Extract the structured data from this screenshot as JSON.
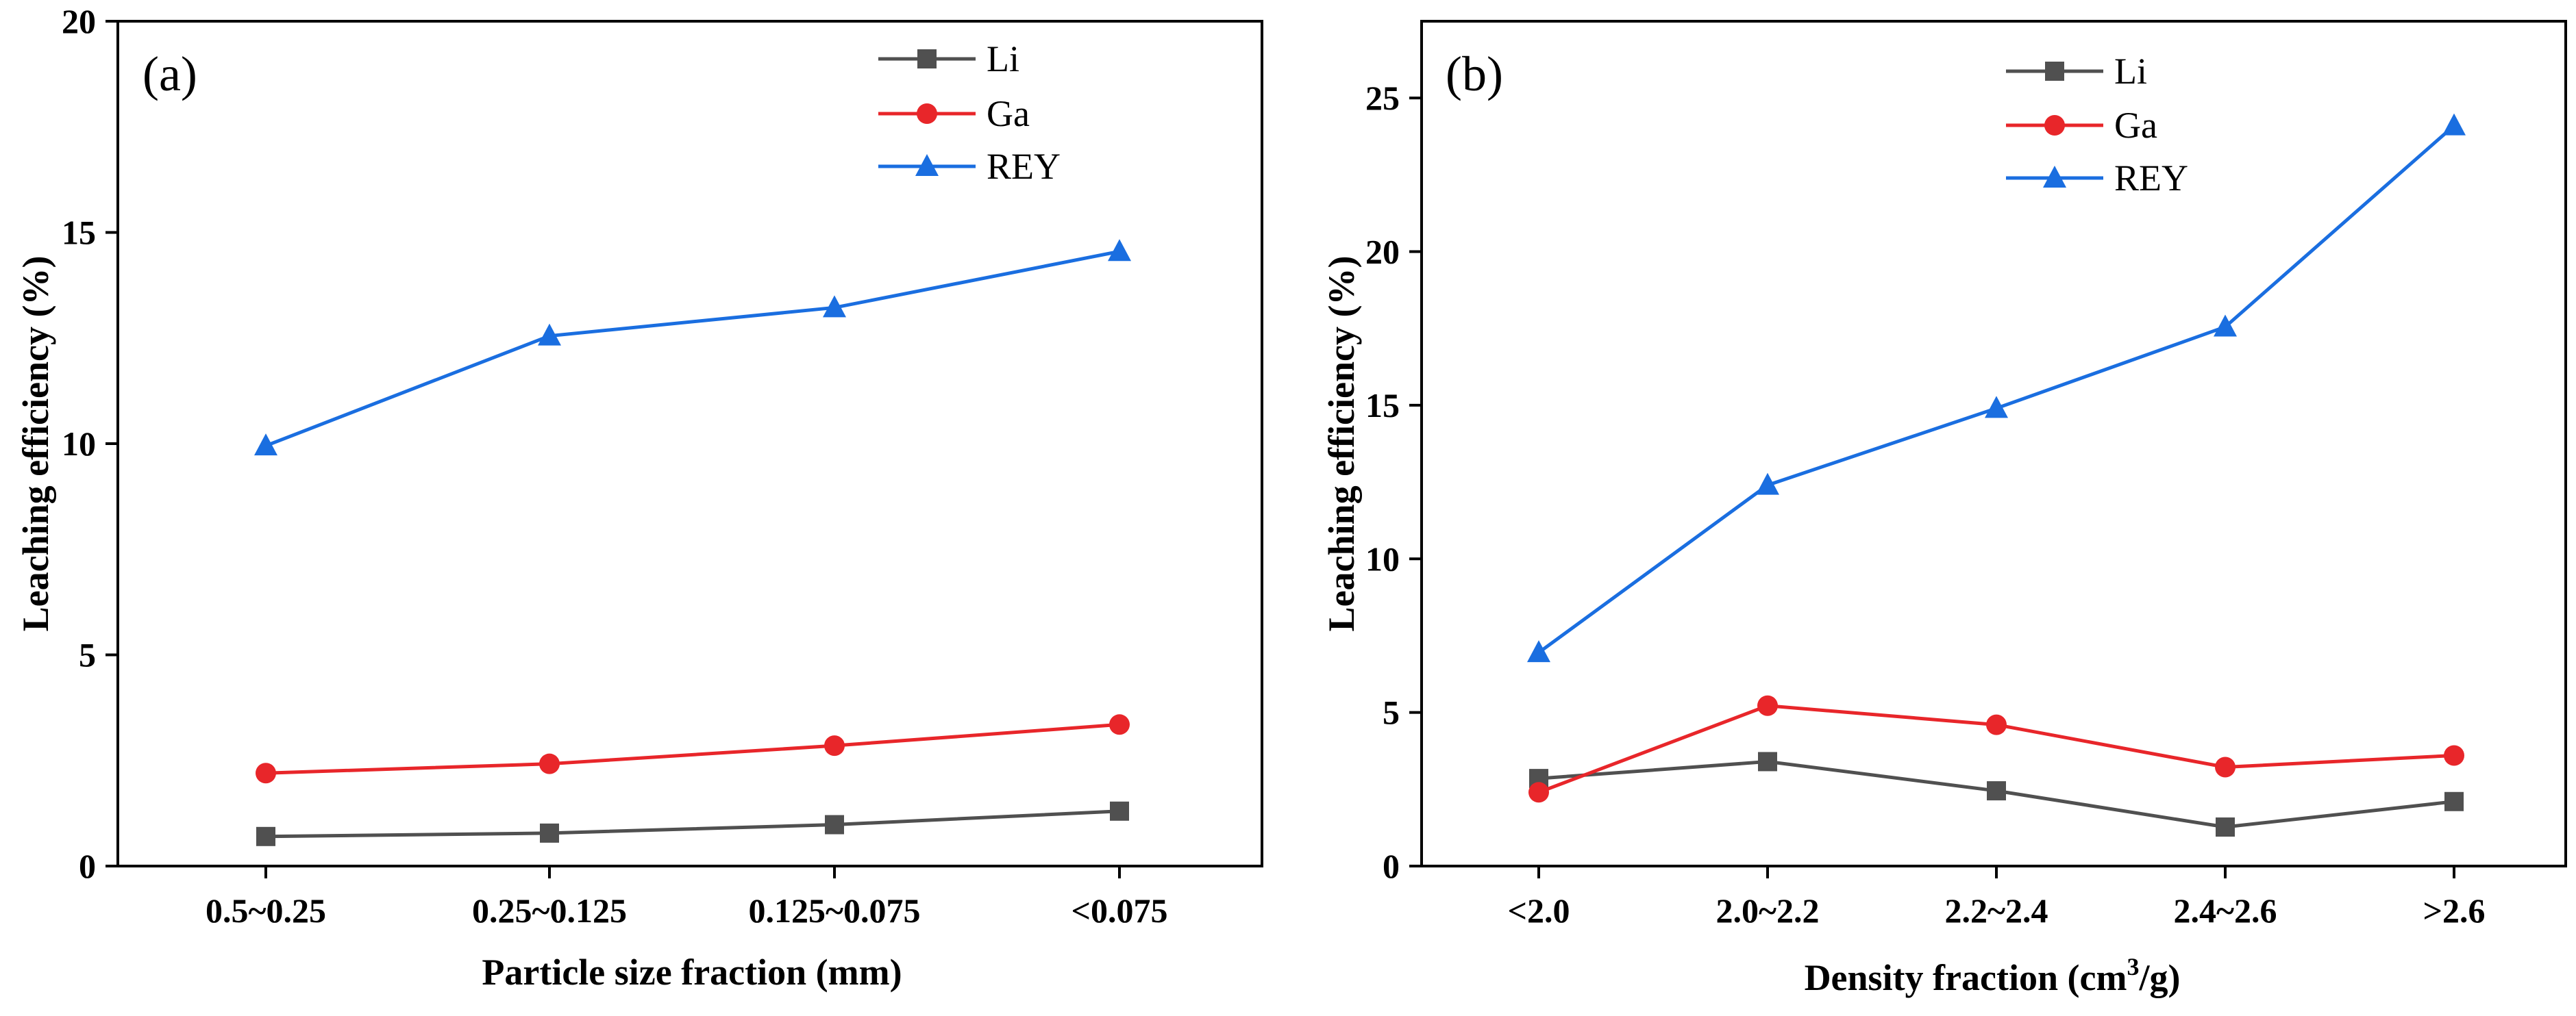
{
  "chart_data": [
    {
      "type": "line",
      "panel_label": "(a)",
      "xlabel": "Particle size fraction (mm)",
      "ylabel": "Leaching efficiency (%)",
      "categories": [
        "0.5~0.25",
        "0.25~0.125",
        "0.125~0.075",
        "<0.075"
      ],
      "ylim": [
        0,
        20
      ],
      "yticks": [
        0,
        5,
        10,
        15,
        20
      ],
      "legend_position": "top-right",
      "series": [
        {
          "name": "Li",
          "marker": "square",
          "color": "#505050",
          "values": [
            0.7,
            0.78,
            0.98,
            1.3
          ]
        },
        {
          "name": "Ga",
          "marker": "circle",
          "color": "#e8262a",
          "values": [
            2.2,
            2.42,
            2.85,
            3.35
          ]
        },
        {
          "name": "REY",
          "marker": "triangle",
          "color": "#1a6ee0",
          "values": [
            9.95,
            12.55,
            13.22,
            14.55
          ]
        }
      ]
    },
    {
      "type": "line",
      "panel_label": "(b)",
      "xlabel_main": "Density fraction (cm",
      "xlabel_sup": "3",
      "xlabel_tail": "/g)",
      "ylabel": "Leaching efficiency (%)",
      "categories": [
        "<2.0",
        "2.0~2.2",
        "2.2~2.4",
        "2.4~2.6",
        ">2.6"
      ],
      "ylim": [
        0,
        27.5
      ],
      "yticks": [
        0,
        5,
        10,
        15,
        20,
        25
      ],
      "legend_position": "top-left",
      "series": [
        {
          "name": "Li",
          "marker": "square",
          "color": "#505050",
          "values": [
            2.85,
            3.4,
            2.45,
            1.27,
            2.1
          ]
        },
        {
          "name": "Ga",
          "marker": "circle",
          "color": "#e8262a",
          "values": [
            2.4,
            5.22,
            4.6,
            3.22,
            3.6
          ]
        },
        {
          "name": "REY",
          "marker": "triangle",
          "color": "#1a6ee0",
          "values": [
            6.95,
            12.4,
            14.9,
            17.55,
            24.1
          ]
        }
      ]
    }
  ]
}
